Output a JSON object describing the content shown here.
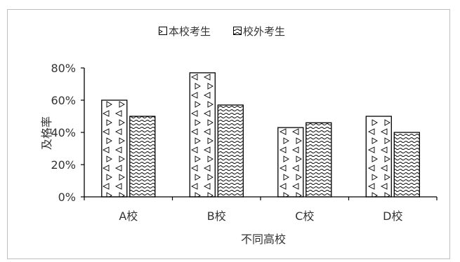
{
  "chart_data": {
    "type": "bar",
    "categories": [
      "A校",
      "B校",
      "C校",
      "D校"
    ],
    "series": [
      {
        "name": "本校考生",
        "values": [
          60,
          77,
          43,
          50
        ],
        "pattern": "triangles"
      },
      {
        "name": "校外考生",
        "values": [
          50,
          57,
          46,
          40
        ],
        "pattern": "waves"
      }
    ],
    "xlabel": "不同高校",
    "ylabel": "及格率",
    "ylim": [
      0,
      80
    ],
    "yticks": [
      "0%",
      "20%",
      "40%",
      "60%",
      "80%"
    ],
    "grid": false,
    "legend": "top-center",
    "colors": {
      "bar_outline": "#000000",
      "bar_fill": "#ffffff",
      "frame": "#bfbfbf",
      "text": "#333333"
    }
  }
}
